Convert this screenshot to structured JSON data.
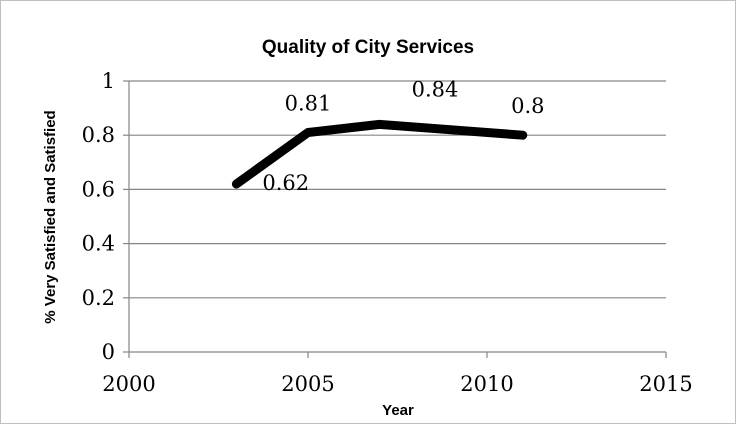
{
  "chart_data": {
    "type": "scatter",
    "title": "Quality of City Services",
    "xlabel": "Year",
    "ylabel": "% Very Satisfied and Satisfied",
    "xlim": [
      2000,
      2015
    ],
    "ylim": [
      0,
      1
    ],
    "x_ticks": [
      "2000",
      "2005",
      "2010",
      "2015"
    ],
    "y_ticks": [
      "0",
      "0.2",
      "0.4",
      "0.6",
      "0.8",
      "1"
    ],
    "grid": true,
    "legend": "none",
    "series": [
      {
        "x": [
          2003,
          2005,
          2007,
          2011
        ],
        "y": [
          0.62,
          0.81,
          0.84,
          0.8
        ],
        "labels": [
          "0.62",
          "0.81",
          "0.84",
          "0.8"
        ],
        "color": "#000000",
        "style": "thick smooth line, no markers"
      }
    ]
  },
  "colors": {
    "gridline": "#868686",
    "axis": "#868686",
    "series": "#000000",
    "border": "#bfbfbf"
  }
}
